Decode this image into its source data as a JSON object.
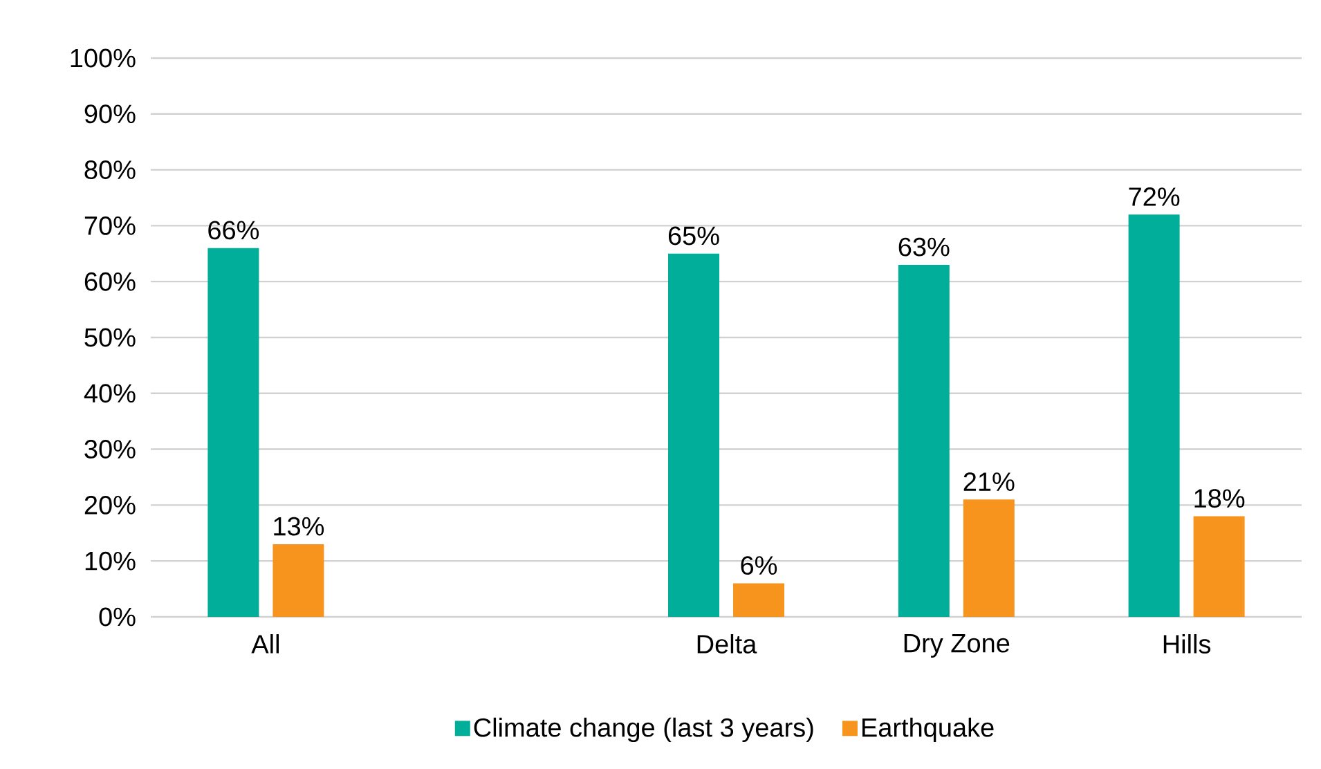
{
  "chart_data": {
    "type": "bar",
    "categories": [
      "All",
      null,
      "Delta",
      "Dry Zone",
      "Hills"
    ],
    "series": [
      {
        "name": "Climate change (last 3 years)",
        "color": "#00ae9a",
        "values": [
          66,
          null,
          65,
          63,
          72
        ],
        "value_labels": [
          "66%",
          null,
          "65%",
          "63%",
          "72%"
        ]
      },
      {
        "name": "Earthquake",
        "color": "#f7941d",
        "values": [
          13,
          null,
          6,
          21,
          18
        ],
        "value_labels": [
          "13%",
          null,
          "6%",
          "21%",
          "18%"
        ]
      }
    ],
    "ylim": [
      0,
      100
    ],
    "yticks": [
      {
        "value": 0,
        "label": "0%"
      },
      {
        "value": 10,
        "label": "10%"
      },
      {
        "value": 20,
        "label": "20%"
      },
      {
        "value": 30,
        "label": "30%"
      },
      {
        "value": 40,
        "label": "40%"
      },
      {
        "value": 50,
        "label": "50%"
      },
      {
        "value": 60,
        "label": "60%"
      },
      {
        "value": 70,
        "label": "70%"
      },
      {
        "value": 80,
        "label": "80%"
      },
      {
        "value": 90,
        "label": "90%"
      },
      {
        "value": 100,
        "label": "100%"
      }
    ],
    "grid": "y",
    "legend": "bottom"
  }
}
